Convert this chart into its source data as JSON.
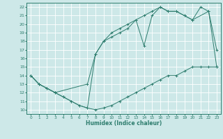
{
  "xlabel": "Humidex (Indice chaleur)",
  "bg_color": "#cde8e8",
  "grid_color": "#b8d8d8",
  "line_color": "#2e7d6e",
  "xlim": [
    -0.5,
    23.5
  ],
  "ylim": [
    9.5,
    22.5
  ],
  "xticks": [
    0,
    1,
    2,
    3,
    4,
    5,
    6,
    7,
    8,
    9,
    10,
    11,
    12,
    13,
    14,
    15,
    16,
    17,
    18,
    19,
    20,
    21,
    22,
    23
  ],
  "yticks": [
    10,
    11,
    12,
    13,
    14,
    15,
    16,
    17,
    18,
    19,
    20,
    21,
    22
  ],
  "line1": {
    "x": [
      0,
      1,
      2,
      3,
      4,
      5,
      6,
      7,
      8,
      9,
      10,
      11,
      12,
      13,
      14,
      15,
      16,
      17,
      18,
      19,
      20,
      21,
      22,
      23
    ],
    "y": [
      14,
      13,
      12.5,
      12,
      11.5,
      11,
      10.5,
      10.2,
      10,
      10.2,
      10.5,
      11,
      11.5,
      12,
      12.5,
      13,
      13.5,
      14,
      14,
      14.5,
      15,
      15,
      15,
      15
    ]
  },
  "line2": {
    "x": [
      0,
      1,
      2,
      3,
      7,
      8,
      9,
      10,
      11,
      12,
      13,
      14,
      15,
      16,
      17,
      18,
      19,
      20,
      22,
      23
    ],
    "y": [
      14,
      13,
      12.5,
      12,
      13,
      16.5,
      18,
      19,
      19.5,
      20,
      20.5,
      17.5,
      21,
      22,
      21.5,
      21.5,
      21,
      20.5,
      21.5,
      17
    ]
  },
  "line3": {
    "x": [
      0,
      1,
      2,
      3,
      4,
      5,
      6,
      7,
      8,
      9,
      10,
      11,
      12,
      13,
      14,
      15,
      16,
      17,
      18,
      19,
      20,
      21,
      22,
      23
    ],
    "y": [
      14,
      13,
      12.5,
      12,
      11.5,
      11,
      10.5,
      10.2,
      16.5,
      18,
      18.5,
      19,
      19.5,
      20.5,
      21,
      21.5,
      22,
      21.5,
      21.5,
      21,
      20.5,
      22,
      21.5,
      15
    ]
  }
}
